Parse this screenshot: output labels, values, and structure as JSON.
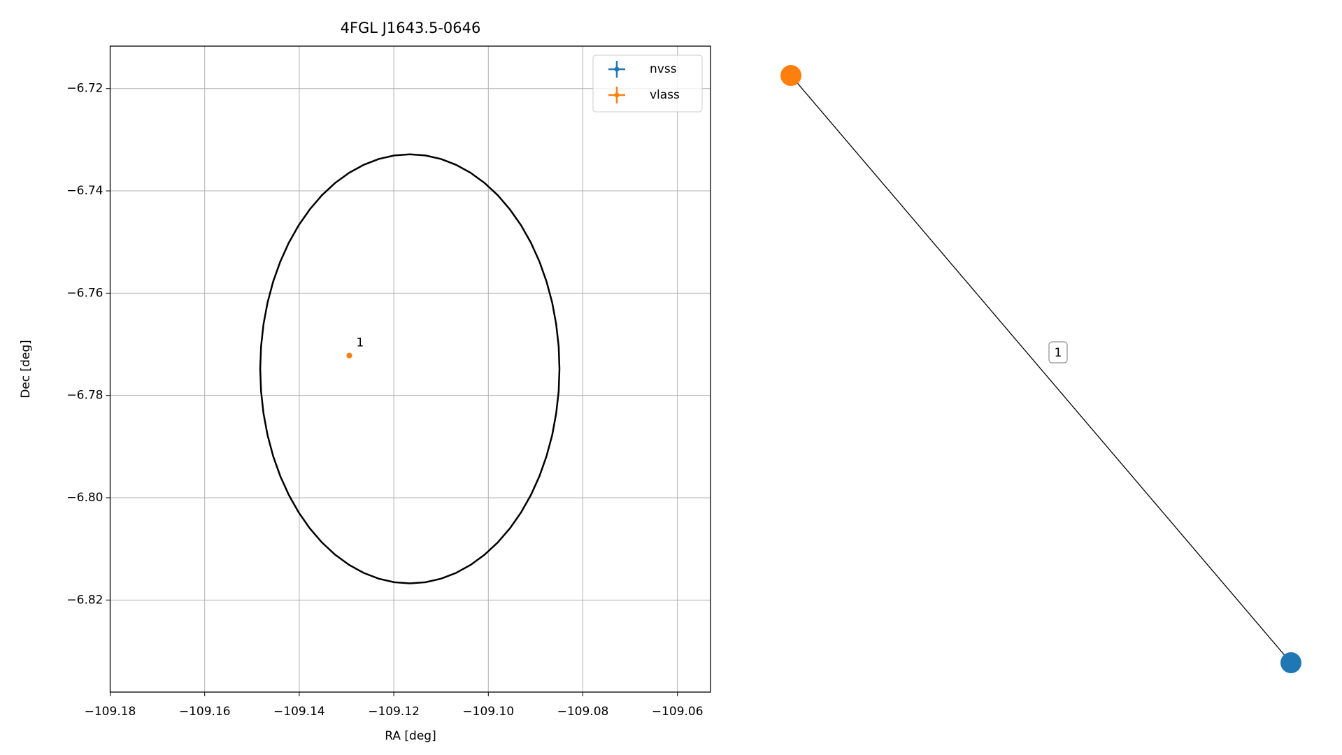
{
  "chart_data": {
    "type": "scatter",
    "title": "4FGL J1643.5-0646",
    "x_label": "RA [deg]",
    "y_label": "Dec [deg]",
    "xlim": [
      -109.18,
      -109.053
    ],
    "ylim": [
      -6.838,
      -6.7117
    ],
    "xticks": [
      {
        "value": -109.18,
        "label": "−109.18"
      },
      {
        "value": -109.16,
        "label": "−109.16"
      },
      {
        "value": -109.14,
        "label": "−109.14"
      },
      {
        "value": -109.12,
        "label": "−109.12"
      },
      {
        "value": -109.1,
        "label": "−109.10"
      },
      {
        "value": -109.08,
        "label": "−109.08"
      },
      {
        "value": -109.06,
        "label": "−109.06"
      }
    ],
    "yticks": [
      {
        "value": -6.72,
        "label": "−6.72"
      },
      {
        "value": -6.74,
        "label": "−6.74"
      },
      {
        "value": -6.76,
        "label": "−6.76"
      },
      {
        "value": -6.78,
        "label": "−6.78"
      },
      {
        "value": -6.8,
        "label": "−6.80"
      },
      {
        "value": -6.82,
        "label": "−6.82"
      }
    ],
    "grid": true,
    "legend": "upper right",
    "series": [
      {
        "name": "nvss",
        "color": "#1f77b4",
        "x": [
          -109.1294
        ],
        "values": [
          -6.7722
        ]
      },
      {
        "name": "vlass",
        "color": "#ff7f0e",
        "x": [
          -109.1294
        ],
        "values": [
          -6.7722
        ]
      }
    ],
    "ellipse": {
      "center": [
        -109.1166,
        -6.7748
      ],
      "width": 0.0633,
      "height": 0.0839,
      "color": "#000000"
    },
    "annotations": [
      {
        "text": "1",
        "x": -109.1294,
        "y": -6.7722
      }
    ]
  },
  "graph": {
    "nodes": [
      {
        "color": "#ff7f0e"
      },
      {
        "color": "#1f77b4"
      }
    ],
    "edges": [
      {
        "label": "1"
      }
    ]
  }
}
